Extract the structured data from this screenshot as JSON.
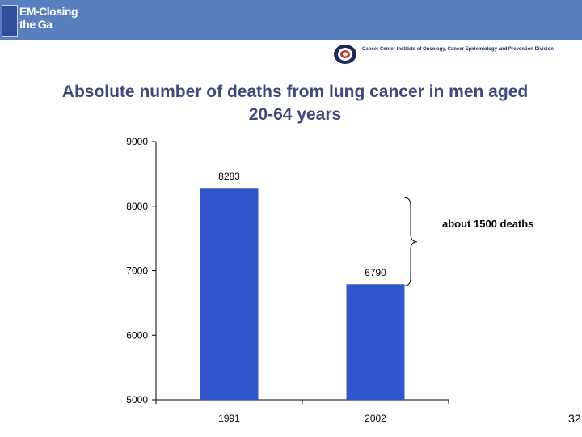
{
  "header": {
    "logo_title": "EM-Closing the Ga",
    "logo_subtitle": "",
    "institute_line1": "Cancer Center Institute of Oncology, Cancer Epidemiology and Prevention Division",
    "institute_line2": "",
    "bar_color": "#5a7fbf"
  },
  "slide": {
    "page_number": "32"
  },
  "chart_data": {
    "type": "bar",
    "title": "Absolute number of deaths from lung cancer in men aged 20-64 years",
    "categories": [
      "1991",
      "2002"
    ],
    "values": [
      8283,
      6790
    ],
    "data_labels": [
      "8283",
      "6790"
    ],
    "ylim": [
      5000,
      9000
    ],
    "yticks": [
      5000,
      6000,
      7000,
      8000,
      9000
    ],
    "xlabel": "",
    "ylabel": "",
    "bar_color": "#3355cc",
    "grid": false,
    "annotation": "about 1500 deaths"
  }
}
